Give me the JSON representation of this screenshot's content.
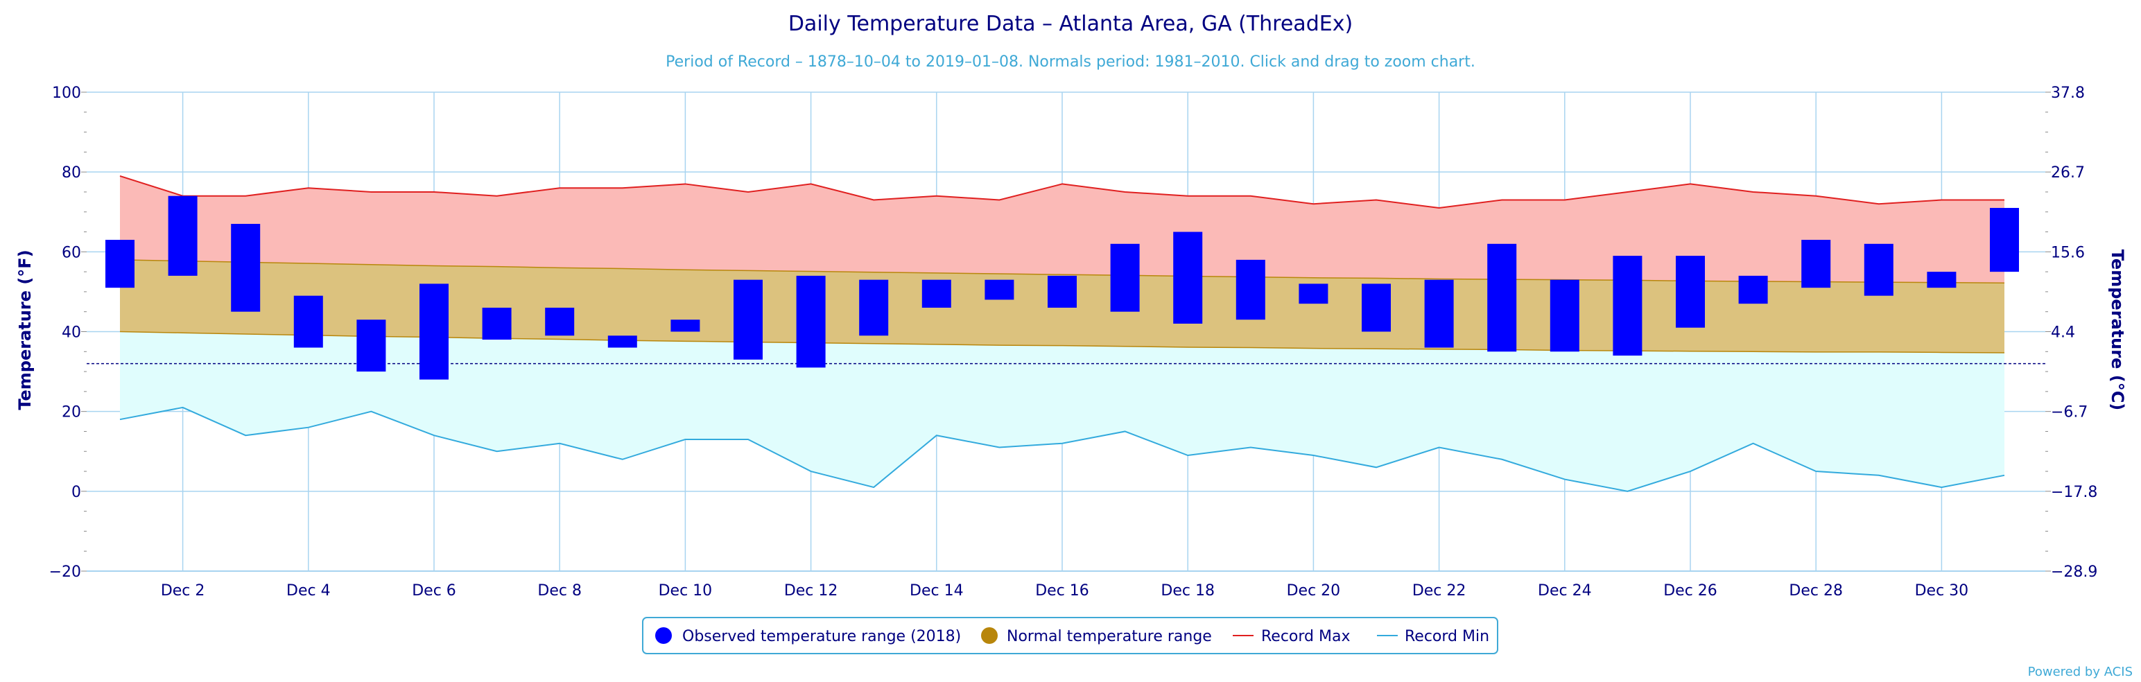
{
  "title": "Daily Temperature Data – Atlanta Area, GA (ThreadEx)",
  "subtitle": "Period of Record – 1878–10–04 to 2019–01–08. Normals period: 1981–2010. Click and drag to zoom chart.",
  "credits": "Powered by ACIS",
  "colors": {
    "observed": "#0000ff",
    "normal_fill": "#dcc27e",
    "normal_line": "#b8860b",
    "record_max_fill": "#fbbab7",
    "record_max_line": "#e02020",
    "record_min_fill": "#e0fdfd",
    "record_min_line": "#33aadd",
    "grid": "#a8d4f0",
    "text": "#000080",
    "freeze_line": "#000080"
  },
  "legend": {
    "observed": "Observed temperature range (2018)",
    "normal": "Normal temperature range",
    "record_max": "Record Max",
    "record_min": "Record Min"
  },
  "chart_data": {
    "type": "bar",
    "title": "Daily Temperature Data – Atlanta Area, GA (ThreadEx)",
    "xlabel": "",
    "ylabel": "Temperature (°F)",
    "ylabel_right": "Temperature (°C)",
    "ylim": [
      -20,
      100
    ],
    "y_ticks": [
      "100",
      "80",
      "60",
      "40",
      "20",
      "0",
      "−20"
    ],
    "y_ticks_right": [
      "37.8",
      "26.7",
      "15.6",
      "4.4",
      "−6.7",
      "−17.8",
      "−28.9"
    ],
    "x_tick_labels": [
      "Dec 2",
      "Dec 4",
      "Dec 6",
      "Dec 8",
      "Dec 10",
      "Dec 12",
      "Dec 14",
      "Dec 16",
      "Dec 18",
      "Dec 20",
      "Dec 22",
      "Dec 24",
      "Dec 26",
      "Dec 28",
      "Dec 30"
    ],
    "freeze_line": 32,
    "grid": true,
    "legend_position": "bottom",
    "days": [
      1,
      2,
      3,
      4,
      5,
      6,
      7,
      8,
      9,
      10,
      11,
      12,
      13,
      14,
      15,
      16,
      17,
      18,
      19,
      20,
      21,
      22,
      23,
      24,
      25,
      26,
      27,
      28,
      29,
      30,
      31
    ],
    "series": [
      {
        "name": "Observed temperature range (2018)",
        "type": "columnrange",
        "low": [
          51,
          54,
          45,
          36,
          30,
          28,
          38,
          39,
          36,
          40,
          33,
          31,
          39,
          46,
          48,
          46,
          45,
          42,
          43,
          47,
          40,
          36,
          35,
          35,
          34,
          41,
          47,
          51,
          49,
          51,
          55
        ],
        "high": [
          63,
          74,
          67,
          49,
          43,
          52,
          46,
          46,
          39,
          43,
          53,
          54,
          53,
          53,
          53,
          54,
          62,
          65,
          58,
          52,
          52,
          53,
          62,
          53,
          59,
          59,
          54,
          63,
          62,
          55,
          71
        ]
      },
      {
        "name": "Normal temperature range",
        "type": "arearange",
        "low": [
          40,
          39.7,
          39.4,
          39.1,
          38.8,
          38.6,
          38.3,
          38.1,
          37.8,
          37.6,
          37.4,
          37.2,
          37.0,
          36.8,
          36.6,
          36.5,
          36.3,
          36.1,
          36.0,
          35.8,
          35.7,
          35.6,
          35.5,
          35.3,
          35.2,
          35.1,
          35.0,
          34.9,
          34.9,
          34.8,
          34.7
        ],
        "high": [
          58,
          57.7,
          57.4,
          57.1,
          56.8,
          56.5,
          56.3,
          56.0,
          55.8,
          55.5,
          55.3,
          55.1,
          54.9,
          54.7,
          54.5,
          54.3,
          54.1,
          53.9,
          53.7,
          53.5,
          53.4,
          53.2,
          53.1,
          53.0,
          52.9,
          52.7,
          52.6,
          52.5,
          52.4,
          52.3,
          52.2
        ]
      },
      {
        "name": "Record Max",
        "type": "line",
        "values": [
          79,
          74,
          74,
          76,
          75,
          75,
          74,
          76,
          76,
          77,
          75,
          77,
          73,
          74,
          73,
          77,
          75,
          74,
          74,
          72,
          73,
          71,
          73,
          73,
          75,
          77,
          75,
          74,
          72,
          73,
          73
        ]
      },
      {
        "name": "Record Min",
        "type": "line",
        "values": [
          18,
          21,
          14,
          16,
          20,
          14,
          10,
          12,
          8,
          13,
          13,
          5,
          1,
          14,
          11,
          12,
          15,
          9,
          11,
          9,
          6,
          11,
          8,
          3,
          0,
          5,
          12,
          5,
          4,
          1,
          4
        ]
      }
    ]
  }
}
